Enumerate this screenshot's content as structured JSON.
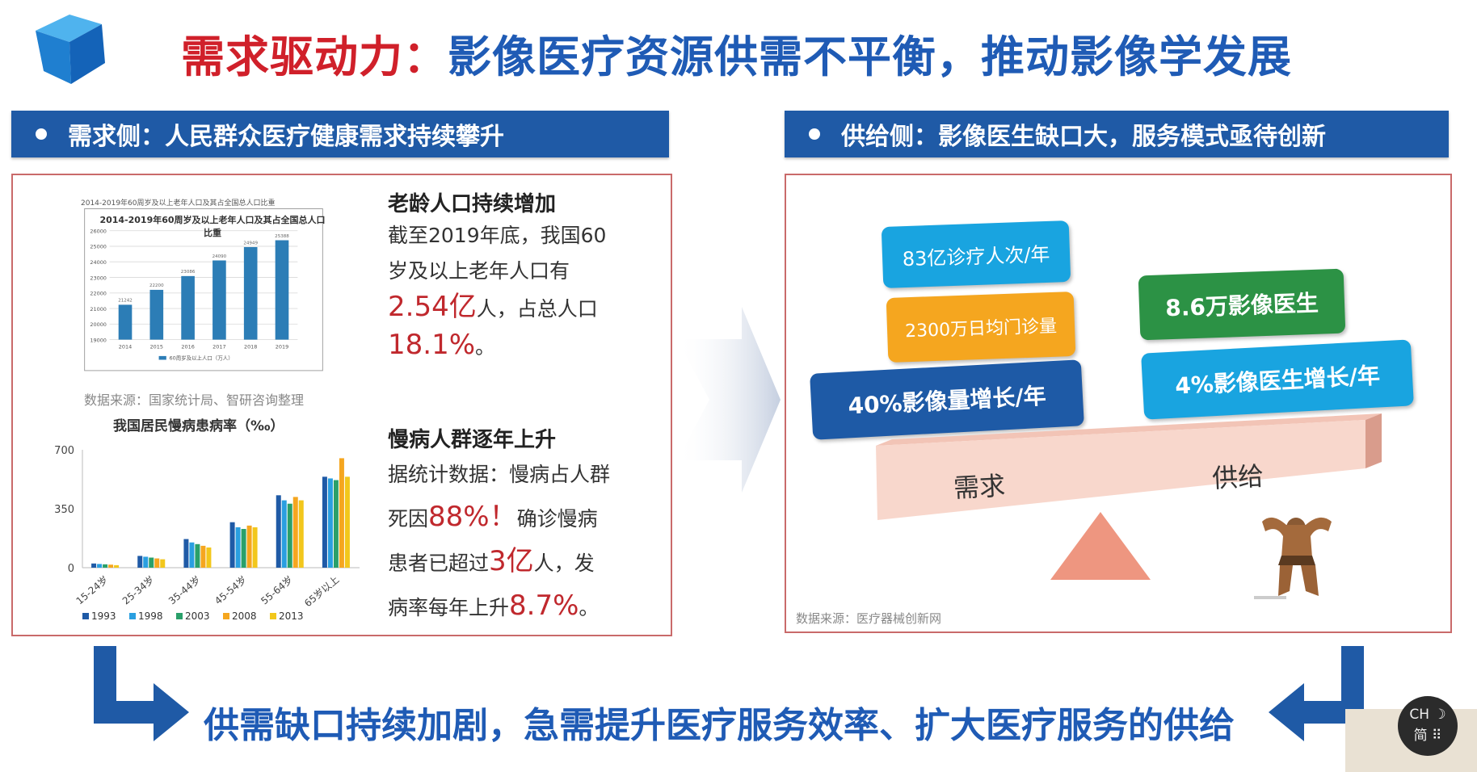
{
  "header": {
    "title_part1": "需求驱动力：",
    "title_part2": "影像医疗资源供需不平衡，推动影像学发展"
  },
  "left": {
    "heading": "需求侧：人民群众医疗健康需求持续攀升",
    "chart1": {
      "caption": "2014-2019年60周岁及以上老年人口及其占全国总人口比重",
      "title": "2014-2019年60周岁及以上老年人口及其占全国总人口比重",
      "source": "数据来源：国家统计局、智研咨询整理"
    },
    "chart2_title": "我国居民慢病患病率（‰）",
    "elderly": {
      "heading": "老龄人口持续增加",
      "line1": "截至2019年底，我国60",
      "line2": "岁及以上老年人口有",
      "num1": "2.54亿",
      "line3": "人，占总人口",
      "num2": "18.1%",
      "line4": "。"
    },
    "chronic": {
      "heading": "慢病人群逐年上升",
      "line1": "据统计数据：慢病占人群",
      "line2a": "死因",
      "num1": "88%！",
      "line2b": "确诊慢病",
      "line3a": "患者已超过",
      "num2": "3亿",
      "line3b": "人，发",
      "line4a": "病率每年上升",
      "num3": "8.7%",
      "line4b": "。"
    }
  },
  "right": {
    "heading": "供给侧：影像医生缺口大，服务模式亟待创新",
    "pills": [
      "83亿诊疗人次/年",
      "2300万日均门诊量",
      "40%影像量增长/年",
      "8.6万影像医生",
      "4%影像医生增长/年"
    ],
    "demand_label": "需求",
    "supply_label": "供给",
    "source": "数据来源：医疗器械创新网"
  },
  "bottom_text": "供需缺口持续加剧，急需提升医疗服务效率、扩大医疗服务的供给",
  "ime": {
    "line1": "CH ☽",
    "line2": "简 ⠿"
  },
  "chart_data": [
    {
      "type": "bar",
      "title": "2014-2019年60周岁及以上老年人口及其占全国总人口比重",
      "categories": [
        "2014",
        "2015",
        "2016",
        "2017",
        "2018",
        "2019"
      ],
      "series": [
        {
          "name": "60周岁及以上人口（万人）",
          "values": [
            21242,
            22200,
            23086,
            24090,
            24949,
            25388
          ]
        }
      ],
      "ylim": [
        19000,
        26000
      ],
      "legend": "bottom",
      "grid": true
    },
    {
      "type": "bar",
      "title": "我国居民慢病患病率（‰）",
      "categories": [
        "15-24岁",
        "25-34岁",
        "35-44岁",
        "45-54岁",
        "55-64岁",
        "65岁以上"
      ],
      "series": [
        {
          "name": "1993",
          "values": [
            25,
            70,
            170,
            270,
            430,
            540
          ]
        },
        {
          "name": "1998",
          "values": [
            22,
            65,
            150,
            240,
            400,
            530
          ]
        },
        {
          "name": "2003",
          "values": [
            20,
            60,
            140,
            230,
            380,
            520
          ]
        },
        {
          "name": "2008",
          "values": [
            18,
            55,
            130,
            250,
            420,
            650
          ]
        },
        {
          "name": "2013",
          "values": [
            15,
            50,
            120,
            240,
            400,
            540
          ]
        }
      ],
      "ylim": [
        0,
        700
      ],
      "yticks": [
        0,
        350,
        700
      ],
      "legend": "bottom",
      "colors": [
        "#1f5aa6",
        "#2a9fe0",
        "#2aa06a",
        "#f5a61f",
        "#f2c71c"
      ]
    }
  ]
}
